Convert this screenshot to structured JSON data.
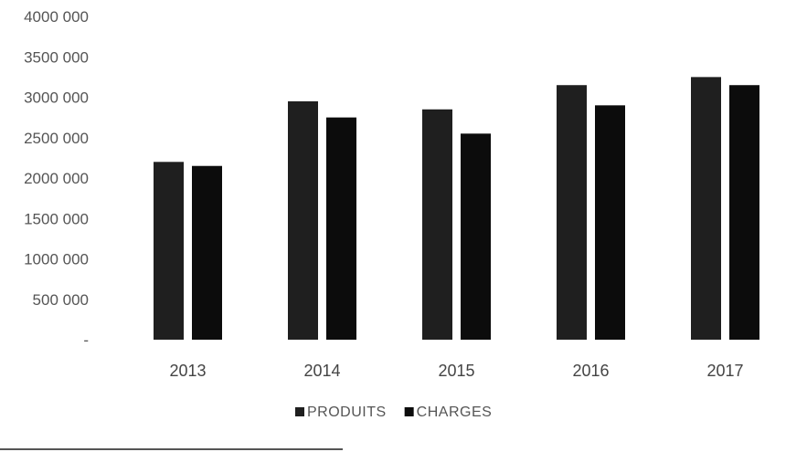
{
  "chart_data": {
    "type": "bar",
    "title": "",
    "xlabel": "",
    "ylabel": "",
    "categories": [
      "2013",
      "2014",
      "2015",
      "2016",
      "2017"
    ],
    "series": [
      {
        "name": "PRODUITS",
        "color": "#1f1f1f",
        "values": [
          2200000,
          2950000,
          2850000,
          3150000,
          3250000
        ]
      },
      {
        "name": "CHARGES",
        "color": "#0c0c0c",
        "values": [
          2150000,
          2750000,
          2550000,
          2900000,
          3150000
        ]
      }
    ],
    "y_tick_labels": [
      "-",
      "500 000",
      "1000 000",
      "1500 000",
      "2000 000",
      "2500 000",
      "3000 000",
      "3500 000",
      "4000 000"
    ],
    "y_tick_values": [
      0,
      500000,
      1000000,
      1500000,
      2000000,
      2500000,
      3000000,
      3500000,
      4000000
    ],
    "ylim": [
      0,
      4000000
    ],
    "grid": false,
    "legend_position": "bottom"
  }
}
